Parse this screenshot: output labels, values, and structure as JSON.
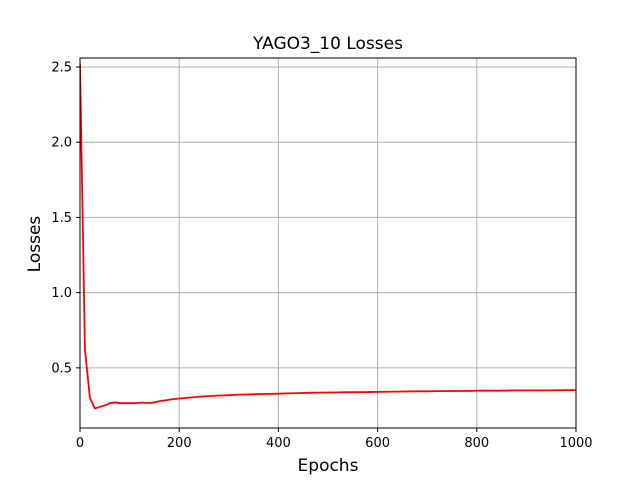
{
  "colors": {
    "series": "#ff0000",
    "grid": "#b0b0b0",
    "axis": "#000000",
    "background": "#ffffff"
  },
  "chart_data": {
    "type": "line",
    "title": "YAGO3_10 Losses",
    "xlabel": "Epochs",
    "ylabel": "Losses",
    "xlim": [
      0,
      1000
    ],
    "ylim": [
      0.1,
      2.56
    ],
    "xticks": [
      0,
      200,
      400,
      600,
      800,
      1000
    ],
    "xtick_labels": [
      "0",
      "200",
      "400",
      "600",
      "800",
      "1000"
    ],
    "yticks": [
      0.5,
      1.0,
      1.5,
      2.0,
      2.5
    ],
    "ytick_labels": [
      "0.5",
      "1.0",
      "1.5",
      "2.0",
      "2.5"
    ],
    "grid": true,
    "series": [
      {
        "color": "#ff0000",
        "x": [
          0,
          10,
          20,
          30,
          40,
          50,
          60,
          70,
          80,
          90,
          100,
          110,
          120,
          130,
          140,
          150,
          160,
          170,
          180,
          190,
          200,
          220,
          240,
          260,
          280,
          300,
          320,
          340,
          360,
          380,
          400,
          420,
          440,
          460,
          480,
          500,
          520,
          540,
          560,
          580,
          600,
          620,
          640,
          660,
          680,
          700,
          720,
          740,
          760,
          780,
          800,
          820,
          840,
          860,
          880,
          900,
          920,
          940,
          960,
          980,
          1000
        ],
        "y": [
          2.52,
          0.62,
          0.3,
          0.23,
          0.24,
          0.25,
          0.265,
          0.27,
          0.265,
          0.265,
          0.265,
          0.265,
          0.268,
          0.268,
          0.266,
          0.27,
          0.278,
          0.283,
          0.288,
          0.293,
          0.296,
          0.302,
          0.308,
          0.312,
          0.316,
          0.318,
          0.322,
          0.323,
          0.325,
          0.327,
          0.328,
          0.33,
          0.332,
          0.334,
          0.335,
          0.336,
          0.337,
          0.338,
          0.338,
          0.339,
          0.34,
          0.341,
          0.342,
          0.343,
          0.344,
          0.344,
          0.345,
          0.345,
          0.346,
          0.346,
          0.348,
          0.349,
          0.348,
          0.349,
          0.35,
          0.35,
          0.35,
          0.35,
          0.351,
          0.352,
          0.352
        ]
      }
    ]
  }
}
